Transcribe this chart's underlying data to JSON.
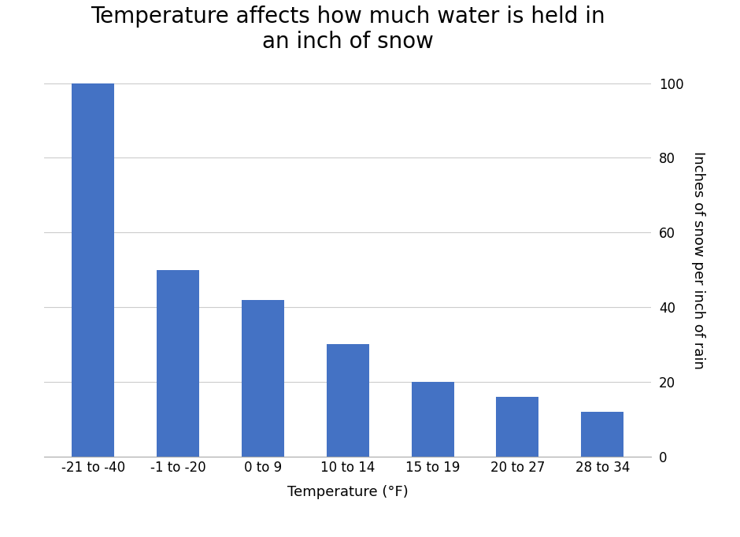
{
  "title": "Temperature affects how much water is held in\nan inch of snow",
  "categories": [
    "-21 to -40",
    "-1 to -20",
    "0 to 9",
    "10 to 14",
    "15 to 19",
    "20 to 27",
    "28 to 34"
  ],
  "values": [
    100,
    50,
    42,
    30,
    20,
    16,
    12
  ],
  "bar_color": "#4472C4",
  "xlabel": "Temperature (°F)",
  "ylabel": "Inches of snow per inch of rain",
  "ylim": [
    0,
    105
  ],
  "yticks": [
    0,
    20,
    40,
    60,
    80,
    100
  ],
  "title_fontsize": 20,
  "label_fontsize": 13,
  "tick_fontsize": 12,
  "background_color": "#ffffff",
  "grid_color": "#cccccc",
  "bar_width": 0.5
}
